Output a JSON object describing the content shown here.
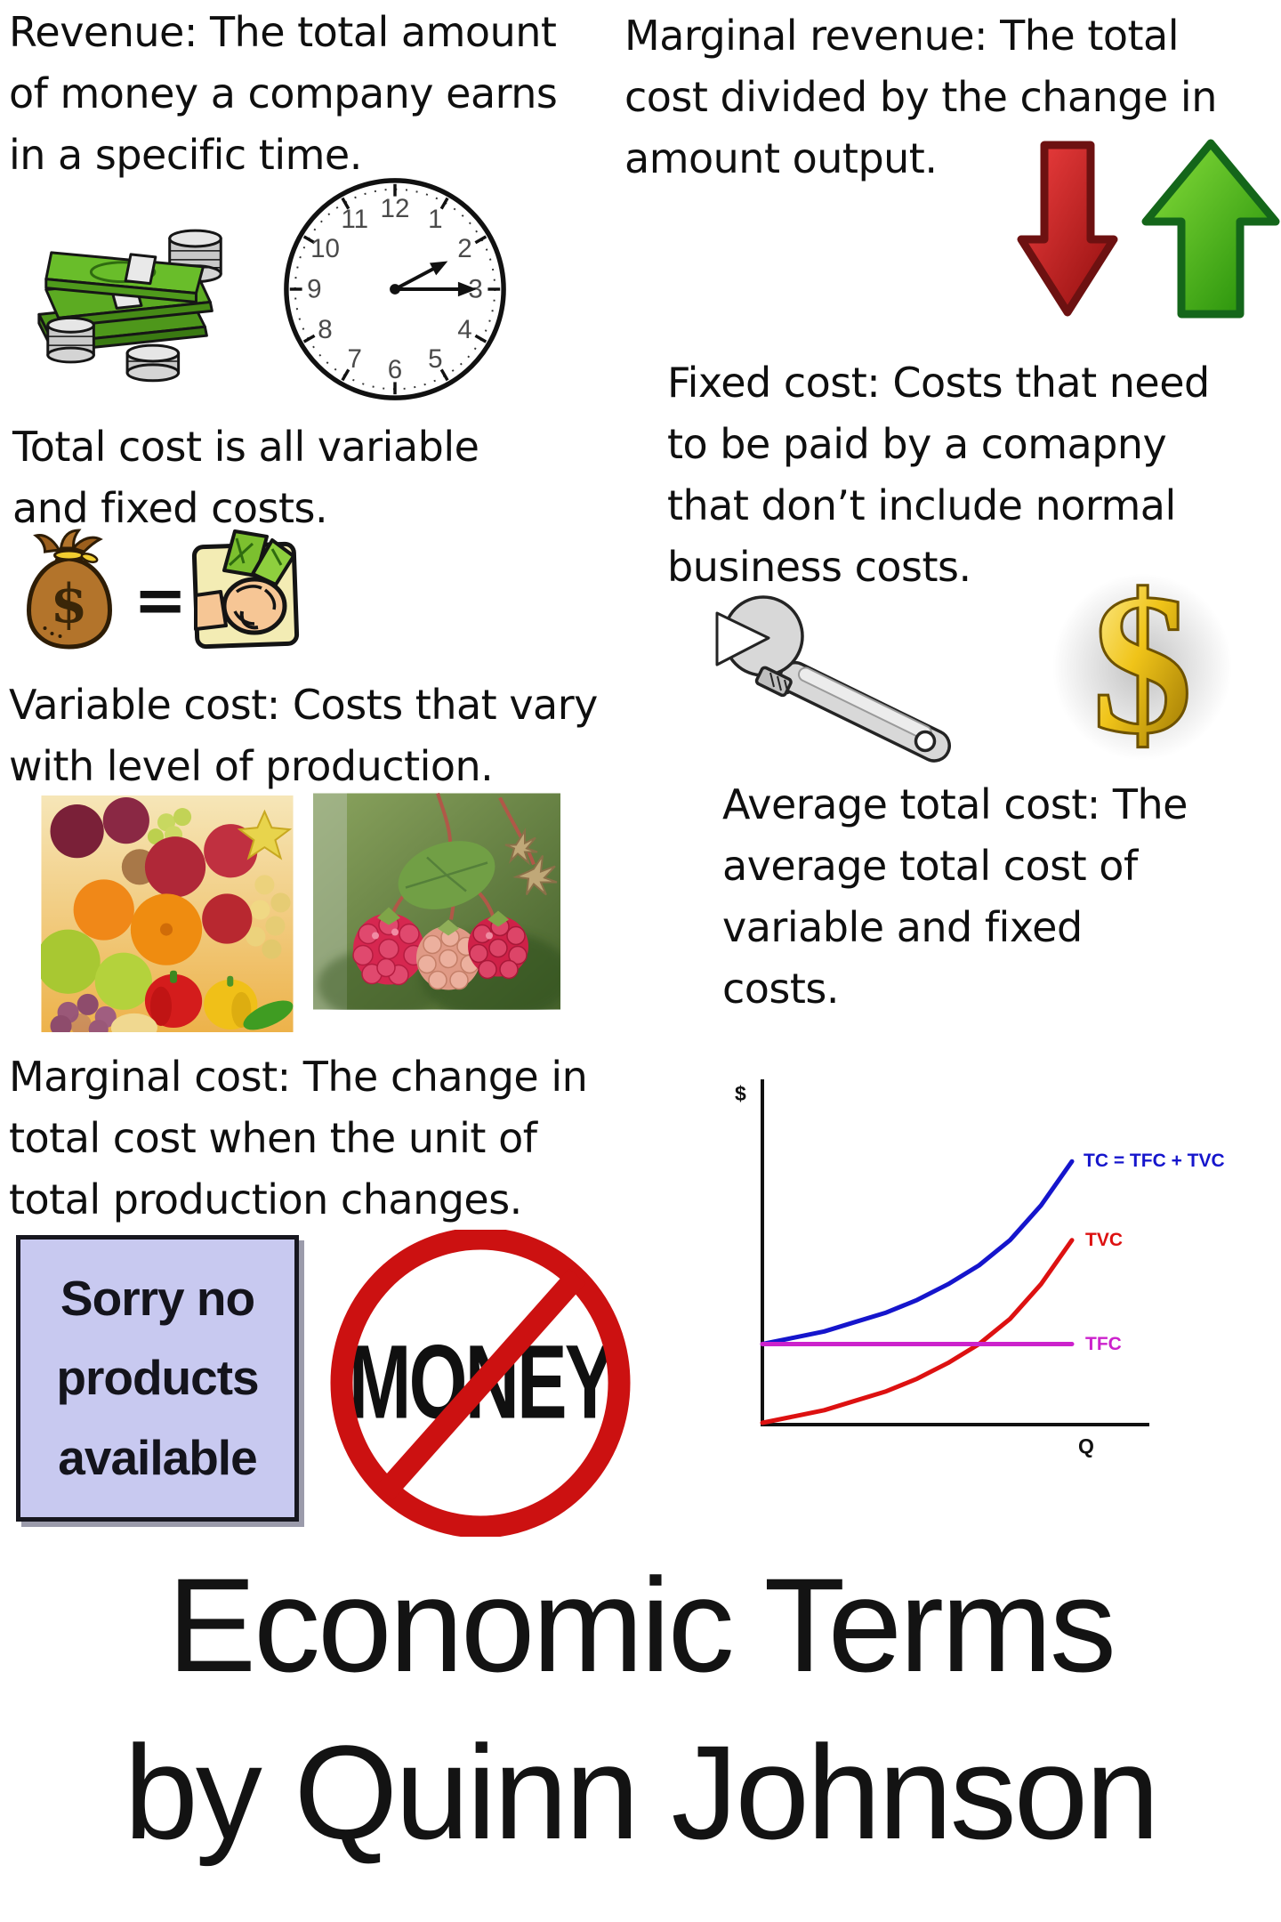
{
  "poster": {
    "title_line1": "Economic Terms",
    "title_line2": "by Quinn Johnson",
    "background": "#ffffff",
    "text_color": "#0f0f0f"
  },
  "terms": {
    "revenue": {
      "lines": [
        "Revenue: The total amount",
        "of money a company earns",
        "in a specific time."
      ]
    },
    "marginal_revenue": {
      "lines": [
        "Marginal revenue: The total",
        "cost divided by the change in",
        "amount output."
      ]
    },
    "total_cost": {
      "lines": [
        "Total cost is all variable",
        "and fixed costs."
      ],
      "equals": "="
    },
    "fixed_cost": {
      "lines": [
        "Fixed cost: Costs that need",
        "to be paid by a comapny",
        "that don’t include normal",
        "business costs."
      ]
    },
    "variable_cost": {
      "lines": [
        "Variable cost: Costs that vary",
        "with level of production."
      ]
    },
    "average_total_cost": {
      "lines": [
        "Average total cost: The",
        "average total cost of",
        "variable and fixed",
        "costs."
      ]
    },
    "marginal_cost": {
      "lines": [
        "Marginal cost: The change in",
        "total cost when the unit of",
        "total production changes."
      ]
    }
  },
  "signs": {
    "sorry": {
      "lines": [
        "Sorry no",
        "products",
        "available"
      ],
      "bg_color": "#c8c9f0"
    },
    "no_money": {
      "text": "MONEY",
      "circle_color": "#cc1111"
    }
  },
  "icons": {
    "money_stack": "money-stack-with-coins",
    "clock": {
      "name": "analog-clock",
      "numbers": [
        "12",
        "1",
        "2",
        "3",
        "4",
        "5",
        "6",
        "7",
        "8",
        "9",
        "10",
        "11"
      ]
    },
    "down_arrow_color": "#cc2222",
    "up_arrow_color": "#44bb11",
    "money_bag": {
      "dollar": "$"
    },
    "cash_in_hand": "fist-holding-cash",
    "wrench": "adjustable-wrench",
    "gold_dollar": {
      "symbol": "$"
    },
    "fruits_photo": "assorted-fruits-photo",
    "raspberries_photo": "raspberries-on-branch-photo"
  },
  "chart_data": {
    "type": "line",
    "title": "",
    "xlabel": "Q",
    "ylabel": "$",
    "x": [
      0,
      1,
      2,
      3,
      4,
      5,
      6,
      7,
      8,
      9,
      10
    ],
    "ylim": [
      0,
      100
    ],
    "grid": false,
    "legend_position": "labels-at-curve-ends",
    "series": [
      {
        "name": "TC = TFC + TVC",
        "color": "#1515cc",
        "values": [
          25,
          27,
          29,
          32,
          35,
          39,
          44,
          50,
          58,
          69,
          83
        ]
      },
      {
        "name": "TVC",
        "color": "#dd1111",
        "values": [
          0,
          2,
          4,
          7,
          10,
          14,
          19,
          25,
          33,
          44,
          58
        ]
      },
      {
        "name": "TFC",
        "color": "#cc22cc",
        "values": [
          25,
          25,
          25,
          25,
          25,
          25,
          25,
          25,
          25,
          25,
          25
        ]
      }
    ]
  }
}
